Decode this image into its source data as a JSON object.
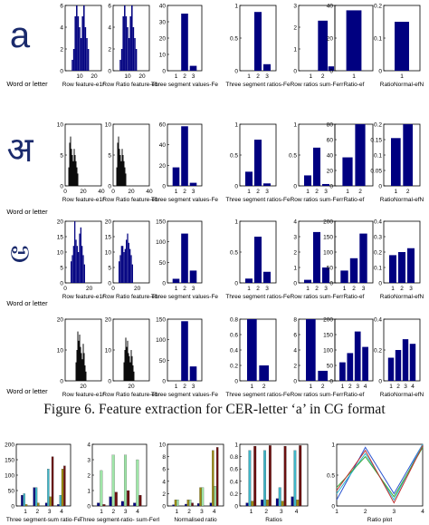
{
  "caption": "Figure 6. Feature extraction for CER-letter ‘a’ in  CG format",
  "glyph_label": "Word or letter",
  "colors": {
    "bar": "#000080",
    "bar_dark": "#000000",
    "cyan": "#3fb6c8",
    "green": "#9fe6a8",
    "maroon": "#6b0f0f",
    "olive": "#9a8a10",
    "axis": "#000000"
  },
  "rows": [
    {
      "glyph": "a",
      "glyph_label": "Word or letter"
    },
    {
      "glyph": "अ",
      "glyph_label": "Word or letter"
    },
    {
      "glyph": "ಅ",
      "glyph_label": "Word or letter"
    },
    {
      "glyph": "଒",
      "glyph_label": "Word or letter"
    }
  ],
  "chart_data": [
    {
      "id": "r1c1",
      "type": "bar",
      "row": 1,
      "xlabel": "Row feature-e1r",
      "ylim": [
        0,
        6
      ],
      "yticks": [
        0,
        2,
        4,
        6
      ],
      "xticks": [
        10,
        20
      ],
      "xlim": [
        0,
        25
      ],
      "bins": [
        [
          5,
          1
        ],
        [
          6,
          2
        ],
        [
          7,
          5
        ],
        [
          8,
          6
        ],
        [
          9,
          5
        ],
        [
          10,
          4
        ],
        [
          11,
          3
        ],
        [
          12,
          5
        ],
        [
          13,
          6
        ],
        [
          14,
          4
        ],
        [
          15,
          3
        ],
        [
          16,
          2
        ]
      ]
    },
    {
      "id": "r1c2",
      "type": "bar",
      "row": 1,
      "xlabel": "Row Ratio feature-e1r",
      "ylim": [
        0,
        6
      ],
      "yticks": [
        0,
        2,
        4,
        6
      ],
      "xticks": [
        10,
        20
      ],
      "xlim": [
        0,
        25
      ],
      "bins": [
        [
          5,
          1
        ],
        [
          6,
          2
        ],
        [
          7,
          5
        ],
        [
          8,
          6
        ],
        [
          9,
          5
        ],
        [
          10,
          4
        ],
        [
          11,
          3
        ],
        [
          12,
          5
        ],
        [
          13,
          6
        ],
        [
          14,
          4
        ],
        [
          15,
          3
        ],
        [
          16,
          2
        ]
      ]
    },
    {
      "id": "r1c3",
      "type": "bar",
      "row": 1,
      "xlabel": "Three segment values-Fe",
      "ylim": [
        0,
        40
      ],
      "yticks": [
        0,
        10,
        20,
        30,
        40
      ],
      "categories": [
        "1",
        "2",
        "3"
      ],
      "values": [
        0,
        35,
        3
      ]
    },
    {
      "id": "r1c4",
      "type": "bar",
      "row": 1,
      "xlabel": "Three segment ratios-Fe",
      "ylim": [
        0,
        1
      ],
      "yticks": [
        0,
        0.5,
        1
      ],
      "categories": [
        "1",
        "2",
        "3"
      ],
      "values": [
        0,
        0.9,
        0.1
      ]
    },
    {
      "id": "r1c5",
      "type": "bar",
      "row": 1,
      "xlabel": "Row ratios sum-Ferr",
      "ylim": [
        0,
        3
      ],
      "yticks": [
        0,
        1,
        2,
        3
      ],
      "categories": [
        "1",
        "2"
      ],
      "values": [
        0,
        2.3
      ],
      "extra": [
        0.2
      ]
    },
    {
      "id": "r1c6",
      "type": "bar",
      "row": 1,
      "xlabel": "Ratio-ef",
      "ylim": [
        0,
        40
      ],
      "yticks": [
        0,
        20,
        40
      ],
      "categories": [
        "1"
      ],
      "values": [
        37
      ]
    },
    {
      "id": "r1c7",
      "type": "bar",
      "row": 1,
      "xlabel": "RatioNormal-efN",
      "ylim": [
        0,
        0.2
      ],
      "yticks": [
        0,
        0.1,
        0.2
      ],
      "categories": [
        "1"
      ],
      "values": [
        0.15
      ]
    },
    {
      "id": "r2c1",
      "type": "bar",
      "row": 2,
      "xlabel": "Row feature-e1r",
      "ylim": [
        0,
        10
      ],
      "yticks": [
        0,
        5,
        10
      ],
      "xticks": [
        0,
        20,
        40
      ],
      "xlim": [
        0,
        40
      ],
      "bins": [
        [
          4,
          3
        ],
        [
          5,
          7
        ],
        [
          6,
          8
        ],
        [
          7,
          6
        ],
        [
          8,
          5
        ],
        [
          9,
          4
        ],
        [
          10,
          6
        ],
        [
          11,
          5
        ],
        [
          12,
          4
        ],
        [
          13,
          3
        ],
        [
          14,
          2
        ]
      ]
    },
    {
      "id": "r2c2",
      "type": "bar",
      "row": 2,
      "xlabel": "Row Ratio feature-e1r",
      "ylim": [
        0,
        10
      ],
      "yticks": [
        0,
        5,
        10
      ],
      "xticks": [
        0,
        20,
        40
      ],
      "xlim": [
        0,
        40
      ],
      "bins": [
        [
          4,
          3
        ],
        [
          5,
          7
        ],
        [
          6,
          8
        ],
        [
          7,
          6
        ],
        [
          8,
          5
        ],
        [
          9,
          4
        ],
        [
          10,
          6
        ],
        [
          11,
          5
        ],
        [
          12,
          4
        ],
        [
          13,
          3
        ],
        [
          14,
          2
        ]
      ]
    },
    {
      "id": "r2c3",
      "type": "bar",
      "row": 2,
      "xlabel": "Three segment values-Fe",
      "ylim": [
        0,
        60
      ],
      "yticks": [
        0,
        20,
        40,
        60
      ],
      "categories": [
        "1",
        "2",
        "3"
      ],
      "values": [
        18,
        58,
        3
      ]
    },
    {
      "id": "r2c4",
      "type": "bar",
      "row": 2,
      "xlabel": "Three segment ratios-Fe",
      "ylim": [
        0,
        1
      ],
      "yticks": [
        0,
        0.5,
        1
      ],
      "categories": [
        "1",
        "2",
        "3"
      ],
      "values": [
        0.23,
        0.75,
        0.04
      ]
    },
    {
      "id": "r2c5",
      "type": "bar",
      "row": 2,
      "xlabel": "Row ratios sum-Ferr",
      "ylim": [
        0,
        1
      ],
      "yticks": [
        0,
        0.5,
        1
      ],
      "categories": [
        "1",
        "2",
        "3"
      ],
      "values": [
        0.17,
        0.62,
        0.03
      ]
    },
    {
      "id": "r2c6",
      "type": "bar",
      "row": 2,
      "xlabel": "Ratio-ef",
      "ylim": [
        0,
        80
      ],
      "yticks": [
        0,
        20,
        40,
        60,
        80
      ],
      "categories": [
        "1",
        "2"
      ],
      "values": [
        37,
        80
      ]
    },
    {
      "id": "r2c7",
      "type": "bar",
      "row": 2,
      "xlabel": "RatioNormal-efN",
      "ylim": [
        0,
        0.2
      ],
      "yticks": [
        0,
        0.05,
        0.1,
        0.15,
        0.2
      ],
      "categories": [
        "1",
        "2"
      ],
      "values": [
        0.155,
        0.2
      ]
    },
    {
      "id": "r3c1",
      "type": "bar",
      "row": 3,
      "xlabel": "Row feature-e1r",
      "ylim": [
        0,
        20
      ],
      "yticks": [
        0,
        5,
        10,
        15,
        20
      ],
      "xticks": [
        0,
        20
      ],
      "xlim": [
        0,
        30
      ],
      "bins": [
        [
          5,
          7
        ],
        [
          6,
          9
        ],
        [
          7,
          12
        ],
        [
          8,
          20
        ],
        [
          9,
          14
        ],
        [
          10,
          12
        ],
        [
          11,
          10
        ],
        [
          12,
          16
        ],
        [
          13,
          18
        ],
        [
          14,
          12
        ],
        [
          15,
          9
        ],
        [
          16,
          6
        ]
      ]
    },
    {
      "id": "r3c2",
      "type": "bar",
      "row": 3,
      "xlabel": "Row Ratio feature-e1r",
      "ylim": [
        0,
        20
      ],
      "yticks": [
        0,
        5,
        10,
        15,
        20
      ],
      "xticks": [
        0,
        20
      ],
      "xlim": [
        0,
        30
      ],
      "bins": [
        [
          5,
          7
        ],
        [
          6,
          9
        ],
        [
          7,
          12
        ],
        [
          8,
          12
        ],
        [
          9,
          10
        ],
        [
          10,
          11
        ],
        [
          11,
          14
        ],
        [
          12,
          16
        ],
        [
          13,
          13
        ],
        [
          14,
          11
        ],
        [
          15,
          9
        ],
        [
          16,
          6
        ]
      ]
    },
    {
      "id": "r3c3",
      "type": "bar",
      "row": 3,
      "xlabel": "Three segment values-Fe",
      "ylim": [
        0,
        150
      ],
      "yticks": [
        0,
        50,
        100,
        150
      ],
      "categories": [
        "1",
        "2",
        "3"
      ],
      "values": [
        10,
        120,
        30
      ]
    },
    {
      "id": "r3c4",
      "type": "bar",
      "row": 3,
      "xlabel": "Three segment ratios-Fe",
      "ylim": [
        0,
        1
      ],
      "yticks": [
        0,
        0.5,
        1
      ],
      "categories": [
        "1",
        "2",
        "3"
      ],
      "values": [
        0.07,
        0.75,
        0.18
      ]
    },
    {
      "id": "r3c5",
      "type": "bar",
      "row": 3,
      "xlabel": "Row ratios sum-Ferr",
      "ylim": [
        0,
        4
      ],
      "yticks": [
        0,
        1,
        2,
        3,
        4
      ],
      "categories": [
        "1",
        "2",
        "3"
      ],
      "values": [
        0.2,
        3.3,
        1.0
      ]
    },
    {
      "id": "r3c6",
      "type": "bar",
      "row": 3,
      "xlabel": "Ratio-ef",
      "ylim": [
        0,
        200
      ],
      "yticks": [
        0,
        50,
        100,
        150,
        200
      ],
      "categories": [
        "1",
        "2",
        "3"
      ],
      "values": [
        40,
        80,
        160
      ]
    },
    {
      "id": "r3c7",
      "type": "bar",
      "row": 3,
      "xlabel": "RatioNormal-efN",
      "ylim": [
        0,
        0.4
      ],
      "yticks": [
        0,
        0.1,
        0.2,
        0.3,
        0.4
      ],
      "categories": [
        "1",
        "2",
        "3"
      ],
      "values": [
        0.18,
        0.2,
        0.225
      ]
    },
    {
      "id": "r4c1",
      "type": "bar",
      "row": 4,
      "xlabel": "Row feature-e1r",
      "ylim": [
        0,
        20
      ],
      "yticks": [
        0,
        10,
        20
      ],
      "xticks": [
        20
      ],
      "xlim": [
        0,
        40
      ],
      "bins": [
        [
          12,
          6
        ],
        [
          13,
          10
        ],
        [
          14,
          16
        ],
        [
          15,
          13
        ],
        [
          16,
          15
        ],
        [
          17,
          11
        ],
        [
          18,
          9
        ],
        [
          19,
          7
        ],
        [
          20,
          12
        ],
        [
          21,
          9
        ],
        [
          22,
          5
        ],
        [
          23,
          3
        ]
      ]
    },
    {
      "id": "r4c2",
      "type": "bar",
      "row": 4,
      "xlabel": "Row Ratio feature-e1r",
      "ylim": [
        0,
        20
      ],
      "yticks": [
        0,
        10,
        20
      ],
      "xticks": [
        20
      ],
      "xlim": [
        0,
        40
      ],
      "bins": [
        [
          12,
          6
        ],
        [
          13,
          10
        ],
        [
          14,
          14
        ],
        [
          15,
          11
        ],
        [
          16,
          13
        ],
        [
          17,
          9
        ],
        [
          18,
          8
        ],
        [
          19,
          6
        ],
        [
          20,
          10
        ],
        [
          21,
          8
        ],
        [
          22,
          5
        ],
        [
          23,
          3
        ]
      ]
    },
    {
      "id": "r4c3",
      "type": "bar",
      "row": 4,
      "xlabel": "Three segment values-Fe",
      "ylim": [
        0,
        150
      ],
      "yticks": [
        0,
        50,
        100,
        150
      ],
      "categories": [
        "1",
        "2",
        "3"
      ],
      "values": [
        0,
        145,
        35
      ]
    },
    {
      "id": "r4c4",
      "type": "bar",
      "row": 4,
      "xlabel": "Three segment ratios-Fe",
      "ylim": [
        0,
        0.8
      ],
      "yticks": [
        0,
        0.2,
        0.4,
        0.6,
        0.8
      ],
      "categories": [
        "1",
        "2"
      ],
      "values": [
        0.8,
        0.2
      ]
    },
    {
      "id": "r4c5",
      "type": "bar",
      "row": 4,
      "xlabel": "Row ratios sum-Ferr",
      "ylim": [
        0,
        8
      ],
      "yticks": [
        0,
        2,
        4,
        6,
        8
      ],
      "categories": [
        "1",
        "2"
      ],
      "values": [
        8,
        1.3
      ]
    },
    {
      "id": "r4c6",
      "type": "bar",
      "row": 4,
      "xlabel": "Ratio-ef",
      "ylim": [
        0,
        200
      ],
      "yticks": [
        0,
        50,
        100,
        150,
        200
      ],
      "categories": [
        "1",
        "2",
        "3",
        "4"
      ],
      "values": [
        60,
        90,
        160,
        110
      ]
    },
    {
      "id": "r4c7",
      "type": "bar",
      "row": 4,
      "xlabel": "RatioNormal-efN",
      "ylim": [
        0,
        0.4
      ],
      "yticks": [
        0,
        0.2,
        0.4
      ],
      "categories": [
        "1",
        "2",
        "3",
        "4"
      ],
      "values": [
        0.15,
        0.2,
        0.27,
        0.24
      ]
    },
    {
      "id": "b1",
      "type": "bar",
      "row": 5,
      "xlabel": "Three segment-sum ratio-Fe",
      "ylim": [
        0,
        200
      ],
      "yticks": [
        0,
        50,
        100,
        150,
        200
      ],
      "categories": [
        "1",
        "2",
        "3",
        "4"
      ],
      "series": [
        {
          "color": "bar",
          "values": [
            35,
            60,
            10,
            5
          ]
        },
        {
          "color": "cyan",
          "values": [
            40,
            60,
            120,
            35
          ]
        },
        {
          "color": "olive",
          "values": [
            5,
            10,
            30,
            120
          ]
        },
        {
          "color": "maroon",
          "values": [
            0,
            0,
            160,
            130
          ]
        }
      ]
    },
    {
      "id": "b2",
      "type": "bar",
      "row": 5,
      "xlabel": "Three segment-ratio- sum-Ferl",
      "ylim": [
        0,
        4
      ],
      "yticks": [
        0,
        1,
        2,
        3,
        4
      ],
      "categories": [
        "1",
        "2",
        "3",
        "4"
      ],
      "series": [
        {
          "color": "bar",
          "values": [
            0.2,
            0.6,
            0.3,
            0.2
          ]
        },
        {
          "color": "green",
          "values": [
            2.3,
            3.3,
            3.3,
            3.0
          ]
        },
        {
          "color": "maroon",
          "values": [
            0.1,
            0.9,
            1.0,
            0.7
          ]
        }
      ]
    },
    {
      "id": "b3",
      "type": "bar",
      "row": 5,
      "xlabel": "Normalised ratio",
      "ylim": [
        0,
        10
      ],
      "yticks": [
        0,
        2,
        4,
        6,
        8,
        10
      ],
      "categories": [
        "1",
        "2",
        "3",
        "4"
      ],
      "series": [
        {
          "color": "bar",
          "values": [
            0.2,
            0.3,
            0.4,
            0.5
          ]
        },
        {
          "color": "olive",
          "values": [
            1.0,
            1.0,
            3.0,
            9.0
          ]
        },
        {
          "color": "green",
          "values": [
            1.0,
            1.0,
            3.0,
            3.2
          ]
        },
        {
          "color": "maroon",
          "values": [
            0,
            0.5,
            0,
            9.5
          ]
        }
      ]
    },
    {
      "id": "b4",
      "type": "bar",
      "row": 5,
      "xlabel": "Ratios",
      "ylim": [
        0,
        1
      ],
      "yticks": [
        0,
        0.2,
        0.4,
        0.6,
        0.8,
        1
      ],
      "categories": [
        "1",
        "2",
        "3",
        "4"
      ],
      "series": [
        {
          "color": "bar",
          "values": [
            0.05,
            0.1,
            0.12,
            0.15
          ]
        },
        {
          "color": "cyan",
          "values": [
            0.9,
            0.9,
            0.3,
            0.9
          ]
        },
        {
          "color": "olive",
          "values": [
            0.08,
            0.1,
            0.08,
            0.1
          ]
        },
        {
          "color": "maroon",
          "values": [
            0.97,
            0.98,
            0.97,
            0.98
          ]
        }
      ]
    },
    {
      "id": "b5",
      "type": "line",
      "row": 5,
      "xlabel": "Ratio plot",
      "ylim": [
        0,
        1
      ],
      "yticks": [
        0,
        0.5,
        1
      ],
      "xlim": [
        1,
        4
      ],
      "xticks": [
        1,
        2,
        3,
        4
      ],
      "series": [
        {
          "color": "#2a55d0",
          "values": [
            0.1,
            0.95,
            0.2,
            1.0
          ]
        },
        {
          "color": "#2eb8cc",
          "values": [
            0.2,
            0.85,
            0.1,
            1.0
          ]
        },
        {
          "color": "#38a838",
          "values": [
            0.3,
            0.8,
            0.15,
            0.95
          ]
        },
        {
          "color": "#c03030",
          "values": [
            0.25,
            0.9,
            0.05,
            0.98
          ]
        }
      ]
    }
  ]
}
